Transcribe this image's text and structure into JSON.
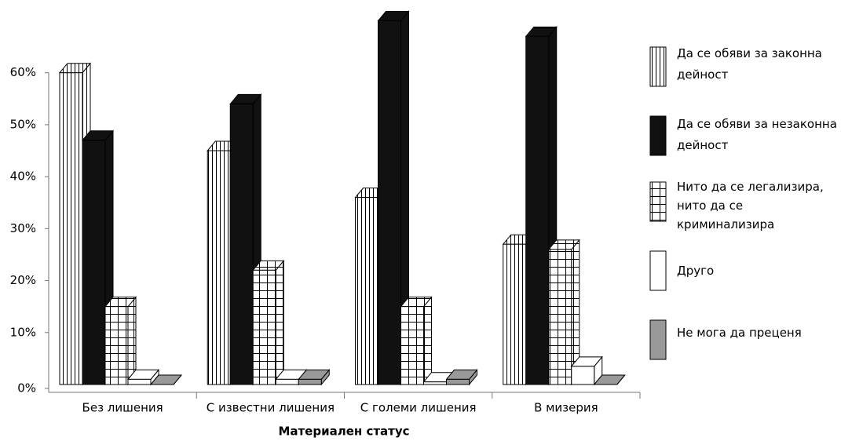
{
  "chart_data": {
    "type": "bar3d",
    "x_label": "Материален статус",
    "categories": [
      "Без лишения",
      "С известни лишения",
      "С големи лишения",
      "В мизерия"
    ],
    "series": [
      {
        "name": "Да се обяви за законна дейност",
        "color": "#ffffff",
        "pattern": "vertical-lines",
        "values": [
          60,
          45,
          36,
          27
        ]
      },
      {
        "name": "Да се обяви за незаконна дейност",
        "color": "#111111",
        "pattern": "solid",
        "values": [
          47,
          54,
          70,
          67
        ]
      },
      {
        "name": "Нито да се легализира, нито да се криминализира",
        "color": "#ffffff",
        "pattern": "grid",
        "values": [
          15,
          22,
          15,
          26
        ]
      },
      {
        "name": "Друго",
        "color": "#ffffff",
        "pattern": "solid",
        "values": [
          1,
          1,
          0.5,
          3.5
        ]
      },
      {
        "name": "Не мога да преценя",
        "color": "#999999",
        "pattern": "solid",
        "values": [
          0,
          1,
          1,
          0
        ]
      }
    ],
    "ylim": [
      0,
      74
    ],
    "yticks": [
      {
        "value": 0,
        "label": "0%"
      },
      {
        "value": 10,
        "label": "10%"
      },
      {
        "value": 20,
        "label": "20%"
      },
      {
        "value": 30,
        "label": "30%"
      },
      {
        "value": 40,
        "label": "40%"
      },
      {
        "value": 50,
        "label": "50%"
      },
      {
        "value": 60,
        "label": "60%"
      }
    ],
    "legend": "right"
  }
}
